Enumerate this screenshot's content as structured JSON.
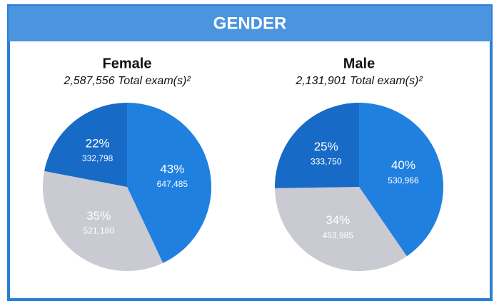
{
  "header": "GENDER",
  "chart_data": [
    {
      "type": "pie",
      "title": "Female",
      "subtitle": "2,587,556 Total exam(s)²",
      "categories": [
        null,
        null,
        null
      ],
      "values": [
        43,
        35,
        22
      ],
      "value_labels": [
        "43%",
        "35%",
        "22%"
      ],
      "counts": [
        647485,
        521180,
        332798
      ],
      "count_labels": [
        "647,485",
        "521,180",
        "332,798"
      ],
      "colors": [
        "#1f80e0",
        "#c9cad2",
        "#176bc6"
      ]
    },
    {
      "type": "pie",
      "title": "Male",
      "subtitle": "2,131,901 Total exam(s)²",
      "categories": [
        null,
        null,
        null
      ],
      "values": [
        40,
        34,
        25
      ],
      "value_labels": [
        "40%",
        "34%",
        "25%"
      ],
      "counts": [
        530966,
        453985,
        333750
      ],
      "count_labels": [
        "530,966",
        "453,985",
        "333,750"
      ],
      "colors": [
        "#1f80e0",
        "#c9cad2",
        "#176bc6"
      ]
    }
  ]
}
